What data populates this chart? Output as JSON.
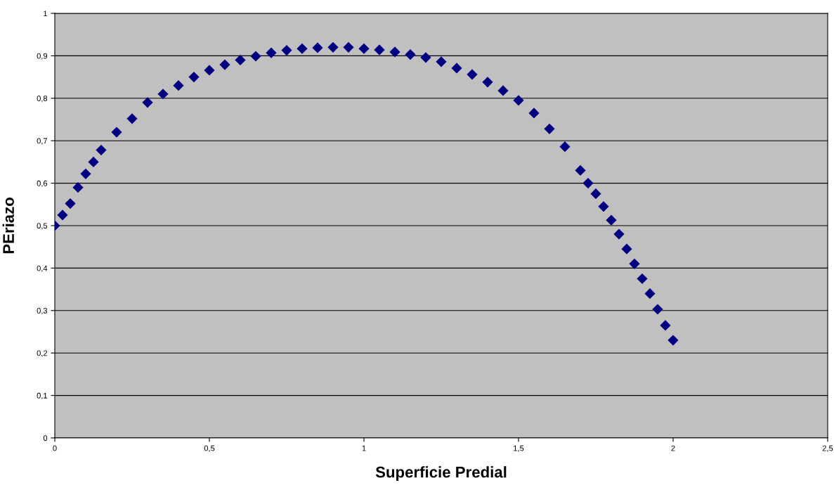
{
  "chart_data": {
    "type": "scatter",
    "xlabel": "Superficie Predial",
    "ylabel": "PEriazo",
    "x": [
      0,
      0.025,
      0.05,
      0.075,
      0.1,
      0.125,
      0.15,
      0.2,
      0.25,
      0.3,
      0.35,
      0.4,
      0.45,
      0.5,
      0.55,
      0.6,
      0.65,
      0.7,
      0.75,
      0.8,
      0.85,
      0.9,
      0.95,
      1.0,
      1.05,
      1.1,
      1.15,
      1.2,
      1.25,
      1.3,
      1.35,
      1.4,
      1.45,
      1.5,
      1.55,
      1.6,
      1.65,
      1.7,
      1.725,
      1.75,
      1.775,
      1.8,
      1.825,
      1.85,
      1.875,
      1.9,
      1.925,
      1.95,
      1.975,
      2.0
    ],
    "series": [
      {
        "color": "#000080",
        "values": [
          0.5,
          0.525,
          0.552,
          0.59,
          0.622,
          0.65,
          0.678,
          0.72,
          0.752,
          0.79,
          0.81,
          0.83,
          0.85,
          0.866,
          0.879,
          0.89,
          0.899,
          0.907,
          0.913,
          0.917,
          0.919,
          0.92,
          0.92,
          0.917,
          0.914,
          0.909,
          0.903,
          0.896,
          0.886,
          0.871,
          0.856,
          0.838,
          0.818,
          0.795,
          0.765,
          0.728,
          0.686,
          0.63,
          0.6,
          0.575,
          0.545,
          0.513,
          0.48,
          0.445,
          0.41,
          0.375,
          0.34,
          0.303,
          0.265,
          0.23
        ]
      }
    ],
    "marker": "diamond",
    "grid": "y",
    "legend": false,
    "xlim": [
      0,
      2.5
    ],
    "xticks": [
      0,
      {
        "value": 0.5,
        "label": "0,5"
      },
      1,
      {
        "value": 1.5,
        "label": "1,5"
      },
      2,
      {
        "value": 2.5,
        "label": "2,5"
      }
    ],
    "ylim": [
      0,
      1
    ],
    "yticks": [
      0,
      {
        "value": 0.1,
        "label": "0,1"
      },
      {
        "value": 0.2,
        "label": "0,2"
      },
      {
        "value": 0.3,
        "label": "0,3"
      },
      {
        "value": 0.4,
        "label": "0,4"
      },
      {
        "value": 0.5,
        "label": "0,5"
      },
      {
        "value": 0.6,
        "label": "0,6"
      },
      {
        "value": 0.7,
        "label": "0,7"
      },
      {
        "value": 0.8,
        "label": "0,8"
      },
      {
        "value": 0.9,
        "label": "0,9"
      },
      1
    ]
  }
}
